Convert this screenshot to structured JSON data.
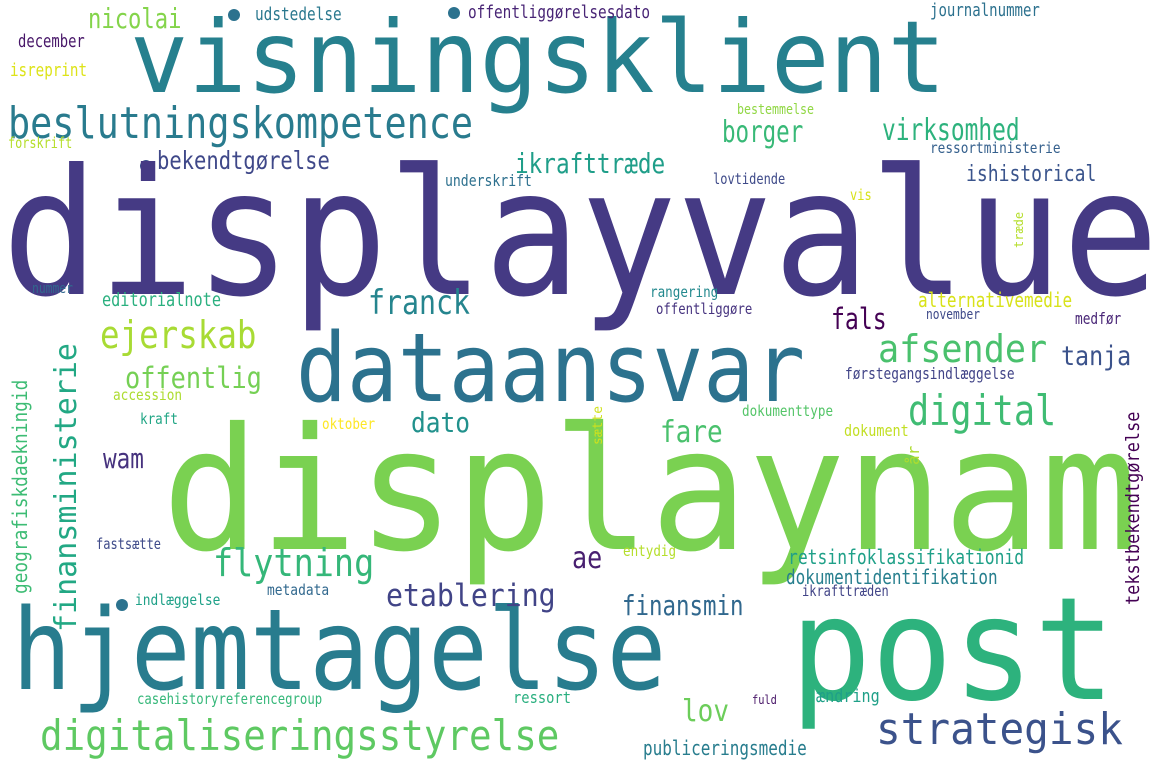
{
  "words": [
    {
      "text": "displayvalue",
      "color": "#453a84"
    },
    {
      "text": "displaynam",
      "color": "#7ad151"
    },
    {
      "text": "visningsklient",
      "color": "#26808e"
    },
    {
      "text": "post",
      "color": "#2db27d"
    },
    {
      "text": "hjemtagelse",
      "color": "#287c8e"
    },
    {
      "text": "dataansvar",
      "color": "#2c728e"
    },
    {
      "text": "beslutningskompetence",
      "color": "#297b8e"
    },
    {
      "text": "digitaliseringsstyrelse",
      "color": "#5ec962"
    },
    {
      "text": "strategisk",
      "color": "#3b528b"
    },
    {
      "text": "afsender",
      "color": "#4ac16d"
    },
    {
      "text": "digital",
      "color": "#3fbc73"
    },
    {
      "text": "ejerskab",
      "color": "#a8db34"
    },
    {
      "text": "franck",
      "color": "#25858e"
    },
    {
      "text": "flytning",
      "color": "#35b779"
    },
    {
      "text": "etablering",
      "color": "#414487"
    },
    {
      "text": "finansministerie",
      "color": "#22a884"
    },
    {
      "text": "nicolai",
      "color": "#84d44b"
    },
    {
      "text": "borger",
      "color": "#38b977"
    },
    {
      "text": "virksomhed",
      "color": "#2db27d"
    },
    {
      "text": "ikrafttræde",
      "color": "#1f9e89"
    },
    {
      "text": "bekendtgørelse",
      "color": "#3f4889"
    },
    {
      "text": "offentlig",
      "color": "#75d054"
    },
    {
      "text": "tanja",
      "color": "#3b528b"
    },
    {
      "text": "fals",
      "color": "#440154"
    },
    {
      "text": "dato",
      "color": "#21918c"
    },
    {
      "text": "fare",
      "color": "#4ac16d"
    },
    {
      "text": "wam",
      "color": "#46327e"
    },
    {
      "text": "finansmin",
      "color": "#31688e"
    },
    {
      "text": "ae",
      "color": "#481f70"
    },
    {
      "text": "lov",
      "color": "#6ccd5a"
    },
    {
      "text": "ishistorical",
      "color": "#3a548c"
    },
    {
      "text": "alternativemedie",
      "color": "#d8e219"
    },
    {
      "text": "editorialnote",
      "color": "#2ab07f"
    },
    {
      "text": "geografiskdaekningid",
      "color": "#3dbc74"
    },
    {
      "text": "retsinfoklassifikationid",
      "color": "#1fa088"
    },
    {
      "text": "dokumentidentifikation",
      "color": "#277f8e"
    },
    {
      "text": "publiceringsmedie",
      "color": "#287d8e"
    },
    {
      "text": "tekstbekendtgørelse",
      "color": "#440154"
    },
    {
      "text": "førstegangsindlæggelse",
      "color": "#404387"
    },
    {
      "text": "udstedelse",
      "color": "#2a788e"
    },
    {
      "text": "offentliggørelsesdato",
      "color": "#482475"
    },
    {
      "text": "journalnummer",
      "color": "#2c718e"
    },
    {
      "text": "december",
      "color": "#481769"
    },
    {
      "text": "isreprint",
      "color": "#dde318"
    },
    {
      "text": "bestemmelse",
      "color": "#90d743"
    },
    {
      "text": "forskrift",
      "color": "#b5de2b"
    },
    {
      "text": "ressortministerie",
      "color": "#35608d"
    },
    {
      "text": "underskrift",
      "color": "#2d708e"
    },
    {
      "text": "lovtidende",
      "color": "#3e4a89"
    },
    {
      "text": "vis",
      "color": "#d8e219"
    },
    {
      "text": "træde",
      "color": "#b5de2b"
    },
    {
      "text": "nummer",
      "color": "#31688e"
    },
    {
      "text": "rangering",
      "color": "#23898e"
    },
    {
      "text": "offentliggøre",
      "color": "#46337f"
    },
    {
      "text": "november",
      "color": "#3e4989"
    },
    {
      "text": "medfør",
      "color": "#482576"
    },
    {
      "text": "accession",
      "color": "#addc30"
    },
    {
      "text": "kraft",
      "color": "#21a685"
    },
    {
      "text": "oktober",
      "color": "#fde725"
    },
    {
      "text": "sætte",
      "color": "#d0e11c"
    },
    {
      "text": "dokumenttype",
      "color": "#54c568"
    },
    {
      "text": "dokument",
      "color": "#c2df23"
    },
    {
      "text": "år",
      "color": "#addc30"
    },
    {
      "text": "fastsætte",
      "color": "#3e4a89"
    },
    {
      "text": "entydig",
      "color": "#b5de2b"
    },
    {
      "text": "indlæggelse",
      "color": "#1fa188"
    },
    {
      "text": "metadata",
      "color": "#31688e"
    },
    {
      "text": "ikrafttræden",
      "color": "#414487"
    },
    {
      "text": "casehistoryreferencegroup",
      "color": "#35b779"
    },
    {
      "text": "ressort",
      "color": "#29af7f"
    },
    {
      "text": "fuld",
      "color": "#481668"
    },
    {
      "text": "ændring",
      "color": "#1fa088"
    }
  ]
}
